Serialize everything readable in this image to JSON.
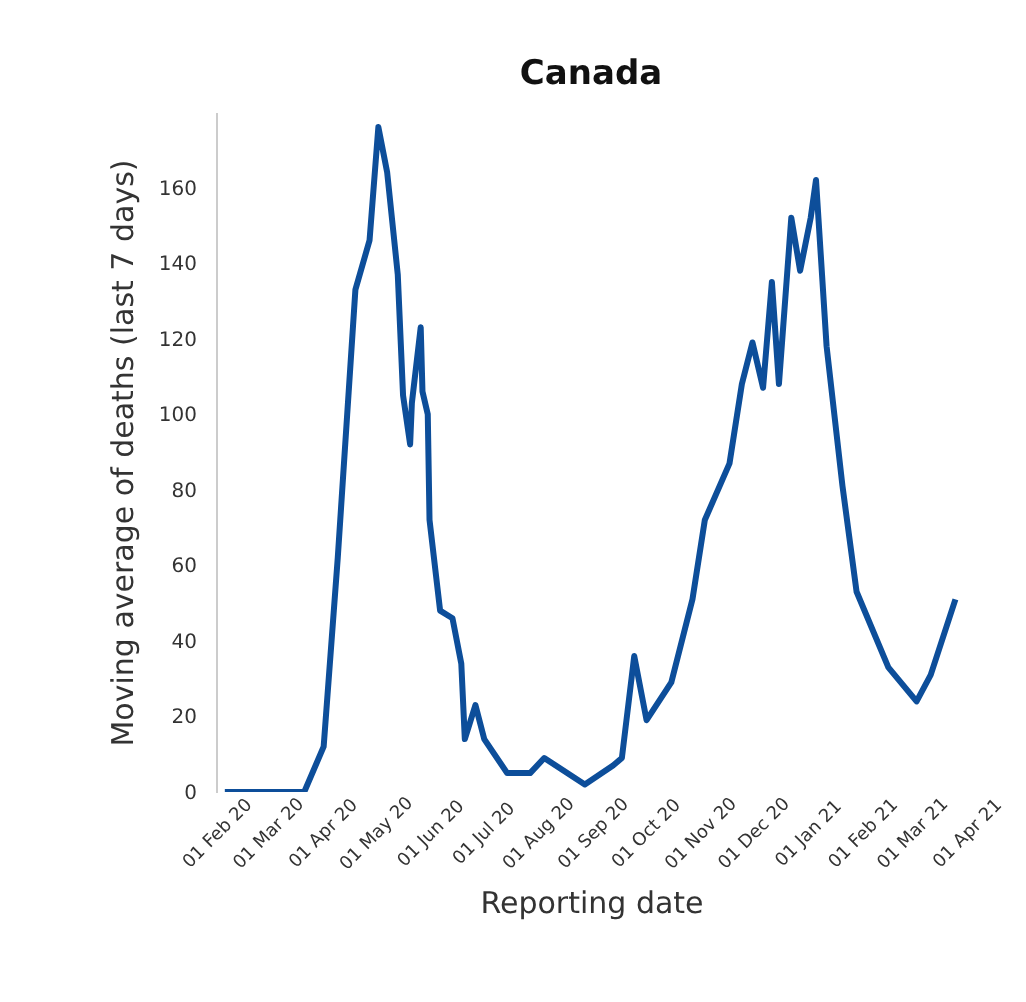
{
  "chart_data": {
    "type": "line",
    "title": "Canada",
    "xlabel": "Reporting date",
    "ylabel": "Moving average of deaths (last 7 days)",
    "x": [
      "2020-02-06",
      "2020-03-22",
      "2020-04-02",
      "2020-04-10",
      "2020-04-20",
      "2020-04-28",
      "2020-05-03",
      "2020-05-08",
      "2020-05-14",
      "2020-05-17",
      "2020-05-21",
      "2020-05-22",
      "2020-05-27",
      "2020-05-28",
      "2020-05-31",
      "2020-06-01",
      "2020-06-07",
      "2020-06-14",
      "2020-06-19",
      "2020-06-21",
      "2020-06-27",
      "2020-07-02",
      "2020-07-15",
      "2020-07-28",
      "2020-08-05",
      "2020-08-28",
      "2020-09-13",
      "2020-09-18",
      "2020-09-25",
      "2020-10-02",
      "2020-10-16",
      "2020-10-28",
      "2020-11-04",
      "2020-11-18",
      "2020-11-25",
      "2020-12-01",
      "2020-12-07",
      "2020-12-12",
      "2020-12-16",
      "2020-12-23",
      "2020-12-28",
      "2021-01-03",
      "2021-01-06",
      "2021-01-12",
      "2021-01-21",
      "2021-01-29",
      "2021-02-16",
      "2021-03-04",
      "2021-03-12",
      "2021-03-26"
    ],
    "series": [
      {
        "color": "#0d4e9a",
        "values": [
          0,
          0,
          12,
          62,
          133,
          146,
          176,
          164,
          137,
          105,
          92,
          103,
          123,
          106,
          100,
          72,
          48,
          46,
          34,
          14,
          23,
          14,
          5,
          5,
          9,
          2,
          7,
          9,
          36,
          19,
          29,
          51,
          72,
          87,
          108,
          119,
          107,
          135,
          108,
          152,
          138,
          152,
          162,
          118,
          81,
          53,
          33,
          24,
          31,
          51
        ]
      }
    ],
    "xlim": [
      "2020-02-01",
      "2021-04-01"
    ],
    "xticks": [
      {
        "value": "2020-02-01",
        "label": "01 Feb 20"
      },
      {
        "value": "2020-03-01",
        "label": "01 Mar 20"
      },
      {
        "value": "2020-04-01",
        "label": "01 Apr 20"
      },
      {
        "value": "2020-05-01",
        "label": "01 May 20"
      },
      {
        "value": "2020-06-01",
        "label": "01 Jun 20"
      },
      {
        "value": "2020-07-01",
        "label": "01 Jul 20"
      },
      {
        "value": "2020-08-01",
        "label": "01 Aug 20"
      },
      {
        "value": "2020-09-01",
        "label": "01 Sep 20"
      },
      {
        "value": "2020-10-01",
        "label": "01 Oct 20"
      },
      {
        "value": "2020-11-01",
        "label": "01 Nov 20"
      },
      {
        "value": "2020-12-01",
        "label": "01 Dec 20"
      },
      {
        "value": "2021-01-01",
        "label": "01 Jan 21"
      },
      {
        "value": "2021-02-01",
        "label": "01 Feb 21"
      },
      {
        "value": "2021-03-01",
        "label": "01 Mar 21"
      },
      {
        "value": "2021-04-01",
        "label": "01 Apr 21"
      }
    ],
    "ylim": [
      0,
      180
    ],
    "yticks": [
      0,
      20,
      40,
      60,
      80,
      100,
      120,
      140,
      160
    ],
    "grid": false,
    "line_style": "solid"
  }
}
